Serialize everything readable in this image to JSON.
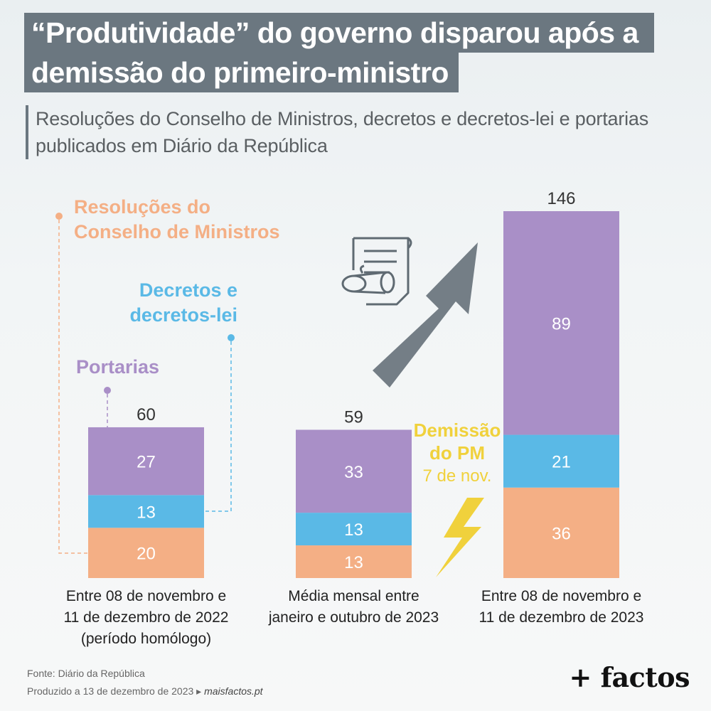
{
  "title": {
    "line1": "“Produtividade” do governo disparou após a",
    "line2": "demissão do primeiro-ministro"
  },
  "subtitle": "Resoluções do Conselho de Ministros, decretos e decretos-lei e portarias\npublicados em Diário da República",
  "legend": {
    "resolucoes": [
      "Resoluções do",
      "Conselho de Ministros"
    ],
    "decretos": [
      "Decretos e",
      "decretos-lei"
    ],
    "portarias": [
      "Portarias"
    ]
  },
  "annotation": {
    "line1": "Demissão",
    "line2": "do PM",
    "line3": "7 de nov."
  },
  "icons": {
    "document": "document-scroll-icon",
    "arrow": "up-trend-arrow-icon",
    "lightning": "lightning-bolt-icon"
  },
  "colors": {
    "resolucoes": "#f4af85",
    "decretos": "#5ab9e6",
    "portarias": "#a98fc7",
    "annotation": "#f0d13c",
    "arrow": "#747e86",
    "title_bg": "#6b7780"
  },
  "chart_data": {
    "type": "bar",
    "stacked": true,
    "categories": [
      [
        "Entre 08 de novembro e",
        "11 de dezembro de 2022",
        "(período homólogo)"
      ],
      [
        "Média mensal entre",
        "janeiro e outubro de 2023"
      ],
      [
        "Entre 08 de novembro e",
        "11 de dezembro de 2023"
      ]
    ],
    "series": [
      {
        "name": "Resoluções do Conselho de Ministros",
        "key": "resolucoes",
        "values": [
          20,
          13,
          36
        ]
      },
      {
        "name": "Decretos e decretos-lei",
        "key": "decretos",
        "values": [
          13,
          13,
          21
        ]
      },
      {
        "name": "Portarias",
        "key": "portarias",
        "values": [
          27,
          33,
          89
        ]
      }
    ],
    "totals": [
      60,
      59,
      146
    ],
    "ylim": [
      0,
      146
    ],
    "grid": false
  },
  "footer": {
    "source": "Fonte: Diário da República",
    "produced": "Produzido a 13 de dezembro de 2023",
    "site": "maisfactos.pt",
    "logo": "+ factos"
  }
}
